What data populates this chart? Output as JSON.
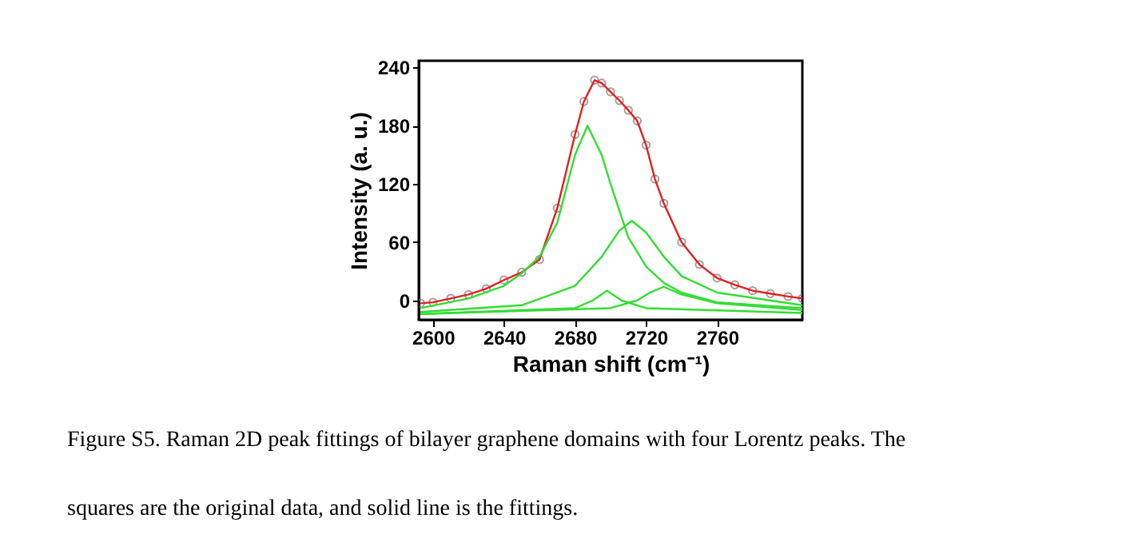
{
  "chart_data": {
    "type": "line",
    "xlabel": "Raman shift (cm⁻¹)",
    "ylabel": "Intensity (a. u.)",
    "xlim": [
      2592,
      2808
    ],
    "ylim": [
      -20,
      247
    ],
    "xticks": [
      2600,
      2640,
      2680,
      2720,
      2760
    ],
    "yticks": [
      0,
      60,
      120,
      180,
      240
    ],
    "grid": false,
    "line_style": "solid",
    "annotations": [
      "Figure S5. Raman 2D peak fittings of bilayer graphene domains with four Lorentz peaks. The",
      "squares are the original data, and solid line is the fittings."
    ],
    "series": [
      {
        "type": "scatter",
        "marker": "circle",
        "color": "#8c6e6e",
        "x": [
          2593,
          2600,
          2610,
          2620,
          2630,
          2640,
          2650,
          2660,
          2670,
          2680,
          2685,
          2691,
          2695,
          2700,
          2705,
          2710,
          2715,
          2720,
          2725,
          2730,
          2740,
          2750,
          2760,
          2770,
          2780,
          2790,
          2800,
          2808
        ],
        "values": [
          -3,
          -2,
          2,
          6,
          12,
          21,
          29,
          42,
          95,
          171,
          205,
          227,
          224,
          215,
          206,
          196,
          185,
          160,
          125,
          100,
          60,
          37,
          23,
          16,
          10,
          7,
          4,
          2
        ]
      },
      {
        "color": "#e02020",
        "x": [
          2593,
          2600,
          2610,
          2620,
          2630,
          2640,
          2650,
          2660,
          2670,
          2680,
          2685,
          2691,
          2695,
          2700,
          2705,
          2710,
          2715,
          2720,
          2725,
          2730,
          2740,
          2750,
          2760,
          2770,
          2780,
          2790,
          2800,
          2808
        ],
        "values": [
          -3,
          -2,
          2,
          6,
          12,
          21,
          29,
          42,
          95,
          171,
          205,
          227,
          224,
          215,
          206,
          196,
          185,
          160,
          125,
          100,
          60,
          37,
          23,
          16,
          10,
          7,
          4,
          2
        ]
      },
      {
        "color": "#33dd33",
        "x": [
          2593,
          2620,
          2640,
          2650,
          2660,
          2670,
          2680,
          2687,
          2695,
          2700,
          2710,
          2720,
          2730,
          2740,
          2760,
          2808
        ],
        "values": [
          -8,
          2,
          15,
          28,
          45,
          80,
          150,
          180,
          150,
          120,
          65,
          35,
          18,
          8,
          -2,
          -8
        ]
      },
      {
        "color": "#33dd33",
        "x": [
          2593,
          2650,
          2680,
          2695,
          2705,
          2712,
          2720,
          2730,
          2740,
          2760,
          2808
        ],
        "values": [
          -12,
          -5,
          15,
          45,
          72,
          82,
          70,
          45,
          25,
          8,
          -5
        ]
      },
      {
        "color": "#33dd33",
        "x": [
          2593,
          2680,
          2690,
          2698,
          2706,
          2720,
          2808
        ],
        "values": [
          -14,
          -8,
          0,
          10,
          0,
          -8,
          -13
        ]
      },
      {
        "color": "#33dd33",
        "x": [
          2593,
          2700,
          2715,
          2722,
          2730,
          2740,
          2760,
          2808
        ],
        "values": [
          -14,
          -8,
          0,
          8,
          14,
          6,
          -3,
          -10
        ]
      }
    ]
  }
}
